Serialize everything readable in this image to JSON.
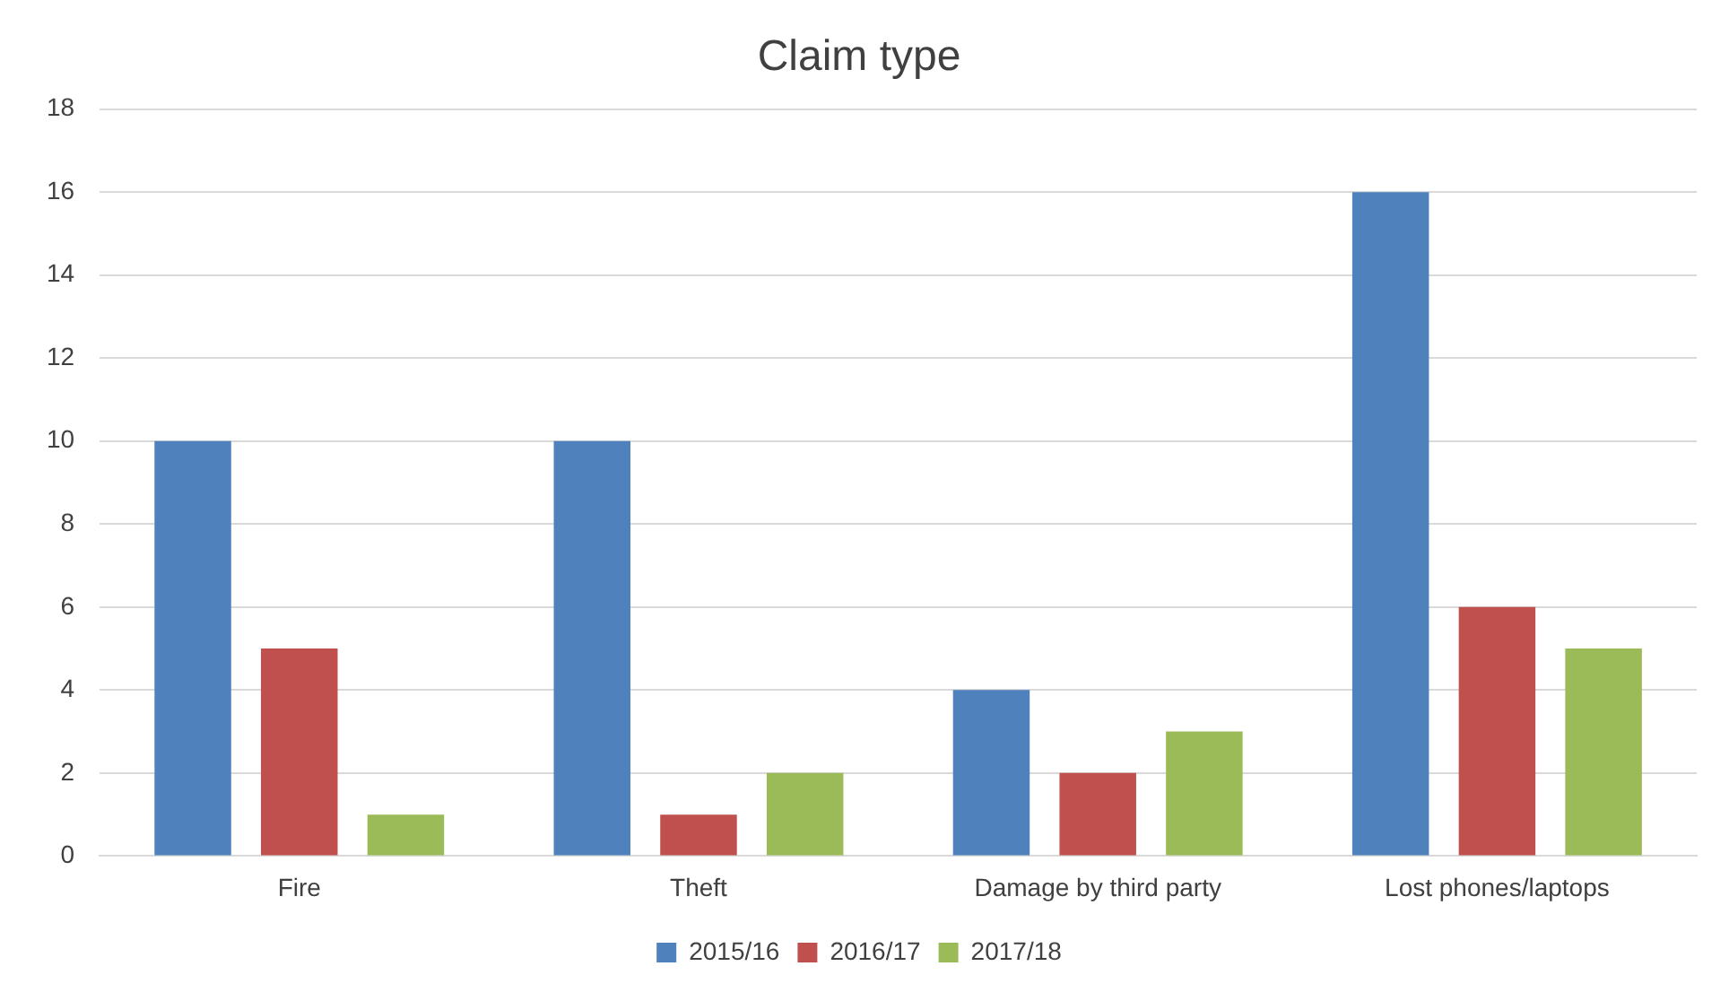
{
  "chart_data": {
    "type": "bar",
    "title": "Claim type",
    "categories": [
      "Fire",
      "Theft",
      "Damage by third party",
      "Lost phones/laptops"
    ],
    "series": [
      {
        "name": "2015/16",
        "color": "#4f81bd",
        "values": [
          10,
          10,
          4,
          16
        ]
      },
      {
        "name": "2016/17",
        "color": "#c0504d",
        "values": [
          5,
          1,
          2,
          6
        ]
      },
      {
        "name": "2017/18",
        "color": "#9bbb59",
        "values": [
          1,
          2,
          3,
          5
        ]
      }
    ],
    "ylim": [
      0,
      18
    ],
    "yticks": [
      0,
      2,
      4,
      6,
      8,
      10,
      12,
      14,
      16,
      18
    ],
    "grid": "y",
    "legend": "bottom"
  }
}
